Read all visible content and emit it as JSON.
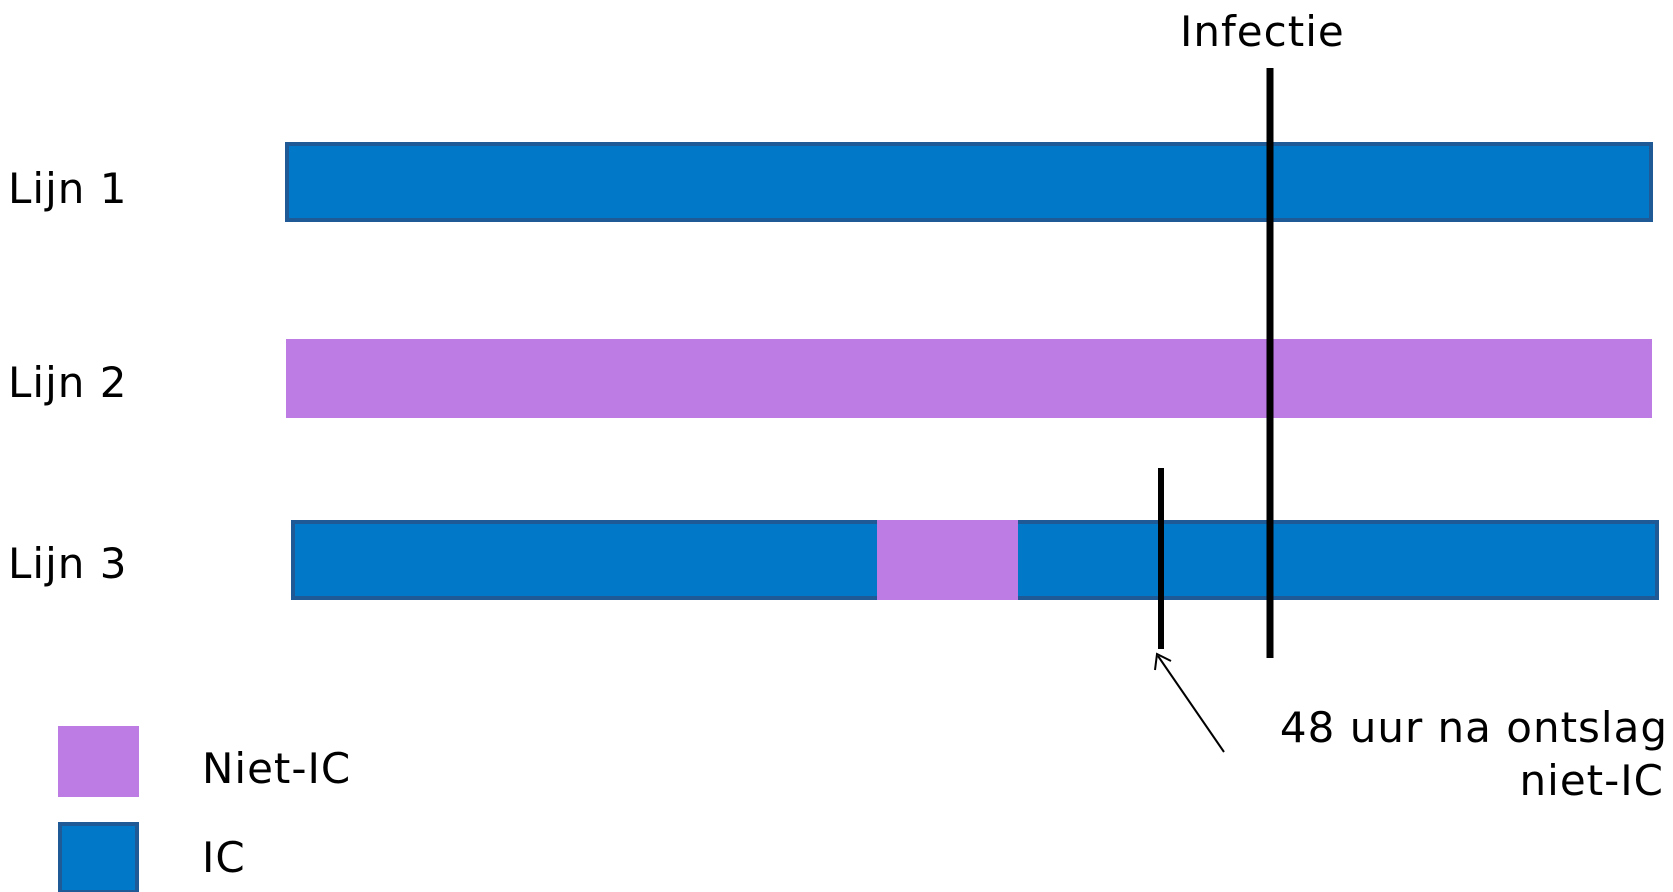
{
  "colors": {
    "ic": "#0279c8",
    "ic_border": "#1f5a96",
    "niet_ic": "#bd7ce4",
    "line": "#000000",
    "background": "#ffffff"
  },
  "rows": [
    {
      "label": "Lijn 1",
      "segments": [
        "IC"
      ]
    },
    {
      "label": "Lijn 2",
      "segments": [
        "Niet-IC"
      ]
    },
    {
      "label": "Lijn 3",
      "segments": [
        "IC",
        "Niet-IC",
        "IC"
      ]
    }
  ],
  "events": {
    "infection": {
      "label": "Infectie"
    },
    "discharge": {
      "label_line1": "48 uur na ontslag",
      "label_line2": "niet-IC"
    }
  },
  "legend": [
    {
      "label": "Niet-IC",
      "type": "niet_ic"
    },
    {
      "label": "IC",
      "type": "ic"
    }
  ]
}
